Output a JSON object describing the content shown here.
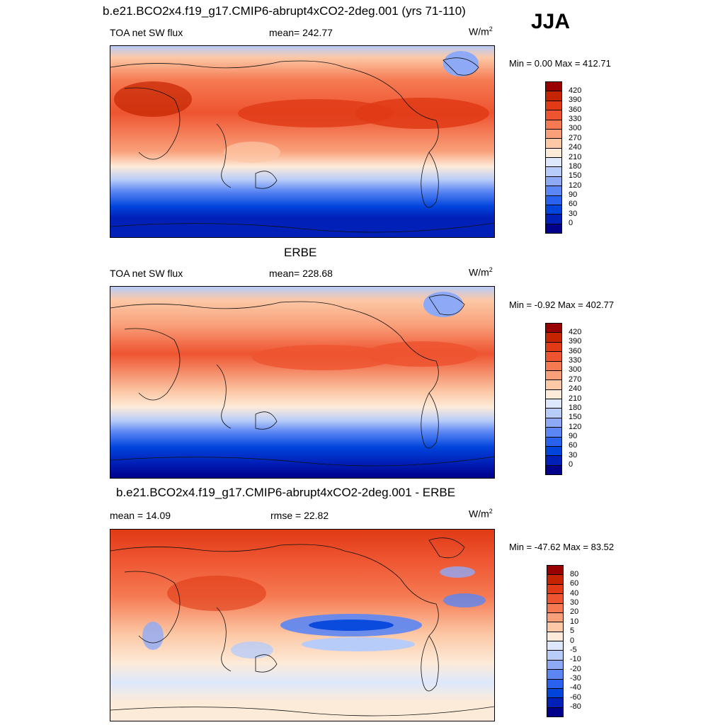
{
  "season": "JJA",
  "palettes": {
    "field": [
      "#00008b",
      "#0020b8",
      "#0044dc",
      "#2a62f0",
      "#5b86f4",
      "#8eaaf7",
      "#b8ccf9",
      "#dde8fc",
      "#fdebd9",
      "#fcc8a6",
      "#f9a07a",
      "#f57a52",
      "#ee5430",
      "#e03a16",
      "#c42400",
      "#990000"
    ],
    "diff": [
      "#00008b",
      "#0020b8",
      "#0044dc",
      "#2a62f0",
      "#5b86f4",
      "#8eaaf7",
      "#b8ccf9",
      "#dde8fc",
      "#fdebd9",
      "#fcc8a6",
      "#f9a07a",
      "#f57a52",
      "#ee5430",
      "#e03a16",
      "#c42400",
      "#990000"
    ]
  },
  "chart_data": [
    {
      "type": "heatmap",
      "title": "b.e21.BCO2x4.f19_g17.CMIP6-abrupt4xCO2-2deg.001 (yrs 71-110)",
      "left_label": "TOA net SW flux",
      "center_label": "mean= 242.77",
      "units": "W/m",
      "units_sup": "2",
      "min_max": "Min =   0.00 Max = 412.71",
      "colorbar_ticks": [
        "420",
        "390",
        "360",
        "330",
        "300",
        "270",
        "240",
        "210",
        "180",
        "150",
        "120",
        "90",
        "60",
        "30",
        "0"
      ],
      "min": 0.0,
      "max": 412.71,
      "mean": 242.77
    },
    {
      "type": "heatmap",
      "title": "ERBE",
      "left_label": "TOA net SW flux",
      "center_label": "mean= 228.68",
      "units": "W/m",
      "units_sup": "2",
      "min_max": "Min =  -0.92 Max = 402.77",
      "colorbar_ticks": [
        "420",
        "390",
        "360",
        "330",
        "300",
        "270",
        "240",
        "210",
        "180",
        "150",
        "120",
        "90",
        "60",
        "30",
        "0"
      ],
      "min": -0.92,
      "max": 402.77,
      "mean": 228.68
    },
    {
      "type": "heatmap",
      "title": "b.e21.BCO2x4.f19_g17.CMIP6-abrupt4xCO2-2deg.001 - ERBE",
      "left_label": "mean =  14.09",
      "center_label": "rmse =  22.82",
      "units": "W/m",
      "units_sup": "2",
      "min_max": "Min = -47.62 Max =  83.52",
      "colorbar_ticks": [
        "80",
        "60",
        "40",
        "30",
        "20",
        "10",
        "5",
        "0",
        "-5",
        "-10",
        "-20",
        "-30",
        "-40",
        "-60",
        "-80"
      ],
      "min": -47.62,
      "max": 83.52,
      "mean": 14.09,
      "rmse": 22.82
    }
  ]
}
